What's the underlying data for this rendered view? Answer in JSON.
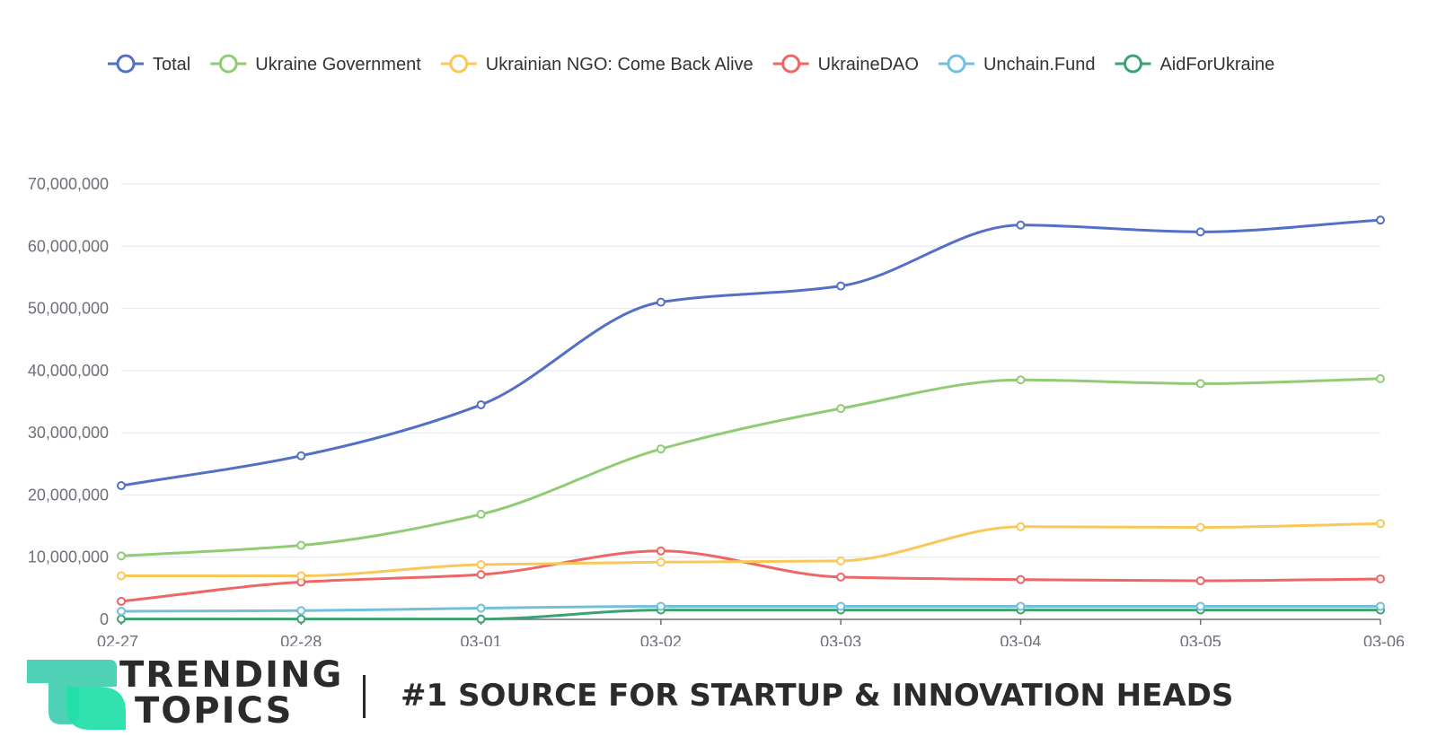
{
  "chart_data": {
    "type": "line",
    "title": "",
    "xlabel": "",
    "ylabel": "",
    "x": [
      "02-27",
      "02-28",
      "03-01",
      "03-02",
      "03-03",
      "03-04",
      "03-05",
      "03-06"
    ],
    "ylim": [
      0,
      70000000
    ],
    "yticks": [
      0,
      10000000,
      20000000,
      30000000,
      40000000,
      50000000,
      60000000,
      70000000
    ],
    "ytick_labels": [
      "0",
      "10,000,000",
      "20,000,000",
      "30,000,000",
      "40,000,000",
      "50,000,000",
      "60,000,000",
      "70,000,000"
    ],
    "grid": true,
    "smooth": true,
    "legend_position": "top",
    "series": [
      {
        "name": "Total",
        "color": "#5470c6",
        "values": [
          21500000,
          26300000,
          34500000,
          51000000,
          53600000,
          63400000,
          62300000,
          64200000
        ]
      },
      {
        "name": "Ukraine Government",
        "color": "#91cc75",
        "values": [
          10200000,
          11900000,
          16900000,
          27400000,
          33900000,
          38500000,
          37900000,
          38700000
        ]
      },
      {
        "name": "Ukrainian NGO: Come Back Alive",
        "color": "#fac858",
        "values": [
          7000000,
          7000000,
          8800000,
          9200000,
          9400000,
          14900000,
          14800000,
          15400000
        ]
      },
      {
        "name": "UkraineDAO",
        "color": "#ee6666",
        "values": [
          2900000,
          6000000,
          7200000,
          11000000,
          6800000,
          6400000,
          6200000,
          6500000
        ]
      },
      {
        "name": "Unchain.Fund",
        "color": "#73c0de",
        "values": [
          1300000,
          1400000,
          1800000,
          2100000,
          2100000,
          2100000,
          2100000,
          2100000
        ]
      },
      {
        "name": "AidForUkraine",
        "color": "#3ba272",
        "values": [
          50000,
          50000,
          50000,
          1500000,
          1500000,
          1500000,
          1500000,
          1500000
        ]
      }
    ]
  },
  "footer": {
    "brand_line1": "TRENDING",
    "brand_line2": "TOPICS",
    "tagline": "#1 SOURCE FOR STARTUP & INNOVATION HEADS",
    "logo_colors": [
      "#4fd1b6",
      "#1fe0a8"
    ],
    "text_color": "#2b2b2b"
  }
}
